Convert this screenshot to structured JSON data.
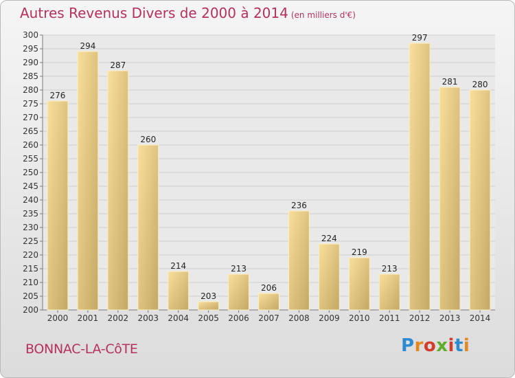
{
  "title": "Autres Revenus Divers de 2000 à 2014",
  "title_unit": "(en milliers d'€)",
  "place": "BONNAC-LA-CôTE",
  "logo": "Proxiti",
  "colors": {
    "title": "#b5305f",
    "bar_light": "#f8df9a",
    "bar_dark": "#c4a865"
  },
  "chart_data": {
    "type": "bar",
    "categories": [
      "2000",
      "2001",
      "2002",
      "2003",
      "2004",
      "2005",
      "2006",
      "2007",
      "2008",
      "2009",
      "2010",
      "2011",
      "2012",
      "2013",
      "2014"
    ],
    "values": [
      276,
      294,
      287,
      260,
      214,
      203,
      213,
      206,
      236,
      224,
      219,
      213,
      297,
      281,
      280
    ],
    "ylim": [
      200,
      300
    ],
    "ytick_step": 5,
    "grid": true,
    "data_labels": true
  }
}
